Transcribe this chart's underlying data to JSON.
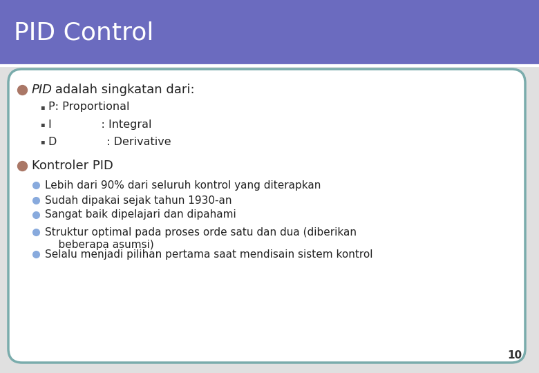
{
  "title": "PID Control",
  "title_bg_color": "#6b6bbf",
  "title_text_color": "#ffffff",
  "content_border_color": "#7aacac",
  "content_bg_color": "#ffffff",
  "bullet1_dot_color": "#aa7766",
  "sub_bullet_marker": "▪",
  "sub_bullets": [
    "P: Proportional",
    "I              : Integral",
    "D              : Derivative"
  ],
  "bullet2_dot_color": "#aa7766",
  "sub_bullets2_color": "#88aadd",
  "sub_bullets2_line1": [
    "Lebih dari 90% dari seluruh kontrol yang diterapkan",
    "Sudah dipakai sejak tahun 1930-an",
    "Sangat baik dipelajari dan dipahami",
    "Struktur optimal pada proses orde satu dan dua (diberikan",
    "Selalu menjadi pilihan pertama saat mendisain sistem kontrol"
  ],
  "sub_bullets2_line2": [
    "",
    "",
    "",
    "    beberapa asumsi)",
    ""
  ],
  "page_number": "10",
  "outer_bg_color": "#e0e0e0"
}
